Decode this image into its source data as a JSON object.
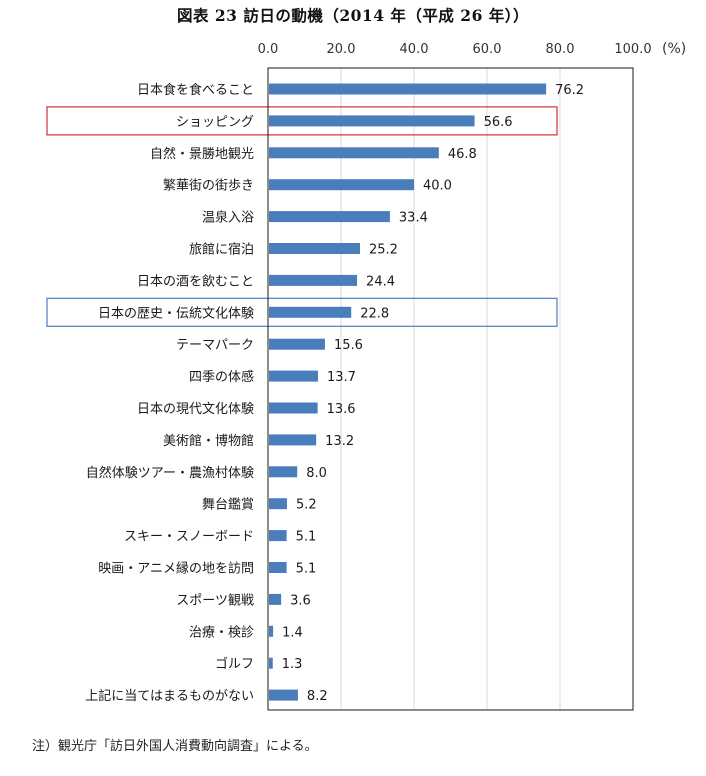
{
  "title": "図表 23 訪日の動機（2014 年（平成 26 年））",
  "note": "注）観光庁「訪日外国人消費動向調査」による。",
  "chart_data": {
    "type": "bar",
    "orientation": "horizontal",
    "unit": "(%)",
    "xlim": [
      0,
      100
    ],
    "ticks": [
      "0.0",
      "20.0",
      "40.0",
      "60.0",
      "80.0",
      "100.0"
    ],
    "grid": true,
    "bar_color": "#4a7ebb",
    "categories": [
      "日本食を食べること",
      "ショッピング",
      "自然・景勝地観光",
      "繁華街の街歩き",
      "温泉入浴",
      "旅館に宿泊",
      "日本の酒を飲むこと",
      "日本の歴史・伝統文化体験",
      "テーマパーク",
      "四季の体感",
      "日本の現代文化体験",
      "美術館・博物館",
      "自然体験ツアー・農漁村体験",
      "舞台鑑賞",
      "スキー・スノーボード",
      "映画・アニメ縁の地を訪問",
      "スポーツ観戦",
      "治療・検診",
      "ゴルフ",
      "上記に当てはまるものがない"
    ],
    "values": [
      76.2,
      56.6,
      46.8,
      40.0,
      33.4,
      25.2,
      24.4,
      22.8,
      15.6,
      13.7,
      13.6,
      13.2,
      8.0,
      5.2,
      5.1,
      5.1,
      3.6,
      1.4,
      1.3,
      8.2
    ],
    "value_labels": [
      "76.2",
      "56.6",
      "46.8",
      "40.0",
      "33.4",
      "25.2",
      "24.4",
      "22.8",
      "15.6",
      "13.7",
      "13.6",
      "13.2",
      "8.0",
      "5.2",
      "5.1",
      "5.1",
      "3.6",
      "1.4",
      "1.3",
      "8.2"
    ],
    "highlights": [
      {
        "category": "ショッピング",
        "color": "#d03030"
      },
      {
        "category": "日本の歴史・伝統文化体験",
        "color": "#4a7ebb"
      }
    ]
  }
}
